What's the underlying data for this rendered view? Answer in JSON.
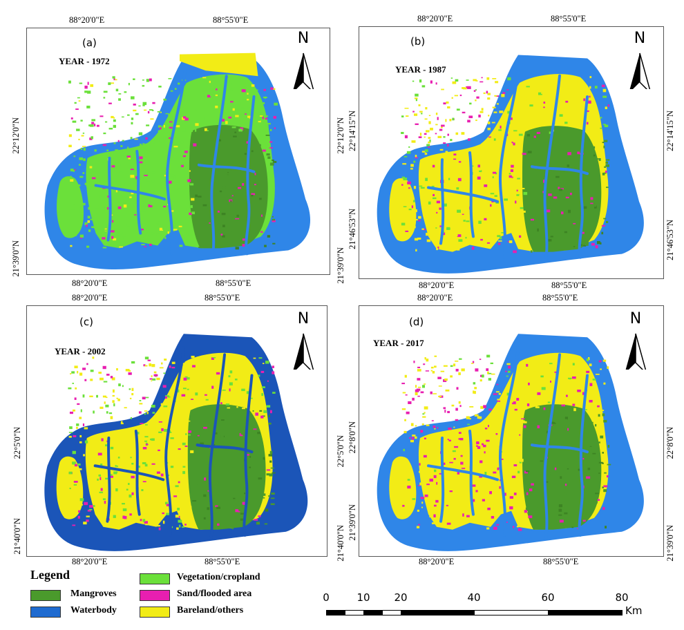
{
  "colors": {
    "mangroves": "#4a9a2c",
    "waterbody": "#1f6bd0",
    "vegetation": "#6be03a",
    "sand": "#e81fb0",
    "bareland": "#f2ec16"
  },
  "panels": [
    {
      "label": "(a)",
      "year": "YEAR - 1972",
      "top_coords": [
        "88°20'0\"E",
        "88°55'0\"E"
      ],
      "bottom_coords": [
        "88°20'0\"E",
        "88°55'0\"E"
      ],
      "left_coords": [
        "22°12'0\"N",
        "21°39'0\"N"
      ],
      "right_coords": []
    },
    {
      "label": "(b)",
      "year": "YEAR - 1987",
      "top_coords": [
        "88°20'0\"E",
        "88°55'0\"E"
      ],
      "bottom_coords": [
        "88°20'0\"E",
        "88°55'0\"E"
      ],
      "left_coords": [
        "22°12'0\"N",
        "21°39'0\"N"
      ],
      "right_coords": [
        "22°14'15\"N",
        "21°46'53\"N"
      ],
      "left_inner_coords": [
        "22°14'15\"N",
        "21°46'53\"N"
      ]
    },
    {
      "label": "(c)",
      "year": "YEAR - 2002",
      "top_coords": [
        "88°20'0\"E",
        "88°55'0\"E"
      ],
      "bottom_coords": [
        "88°20'0\"E",
        "88°55'0\"E"
      ],
      "left_coords": [
        "22°5'0\"N",
        "21°40'0\"N"
      ],
      "right_coords": []
    },
    {
      "label": "(d)",
      "year": "YEAR - 2017",
      "top_coords": [
        "88°20'0\"E",
        "88°55'0\"E"
      ],
      "bottom_coords": [
        "88°20'0\"E",
        "88°55'0\"E"
      ],
      "left_coords": [
        "22°5'0\"N",
        "21°40'0\"N"
      ],
      "right_coords": [
        "22°8'0\"N",
        "21°39'0\"N"
      ],
      "left_inner_coords": [
        "22°8'0\"N",
        "21°39'0\"N"
      ]
    }
  ],
  "north_label": "N",
  "legend": {
    "title": "Legend",
    "items": [
      {
        "label": "Mangroves",
        "color": "#4a9a2c"
      },
      {
        "label": "Waterbody",
        "color": "#1f6bd0"
      },
      {
        "label": "Vegetation/cropland",
        "color": "#6be03a"
      },
      {
        "label": "Sand/flooded area",
        "color": "#e81fb0"
      },
      {
        "label": "Bareland/others",
        "color": "#f2ec16"
      }
    ]
  },
  "scale": {
    "ticks": [
      "0",
      "10",
      "20",
      "40",
      "60",
      "80"
    ],
    "subtick": "5",
    "unit": "Km"
  }
}
